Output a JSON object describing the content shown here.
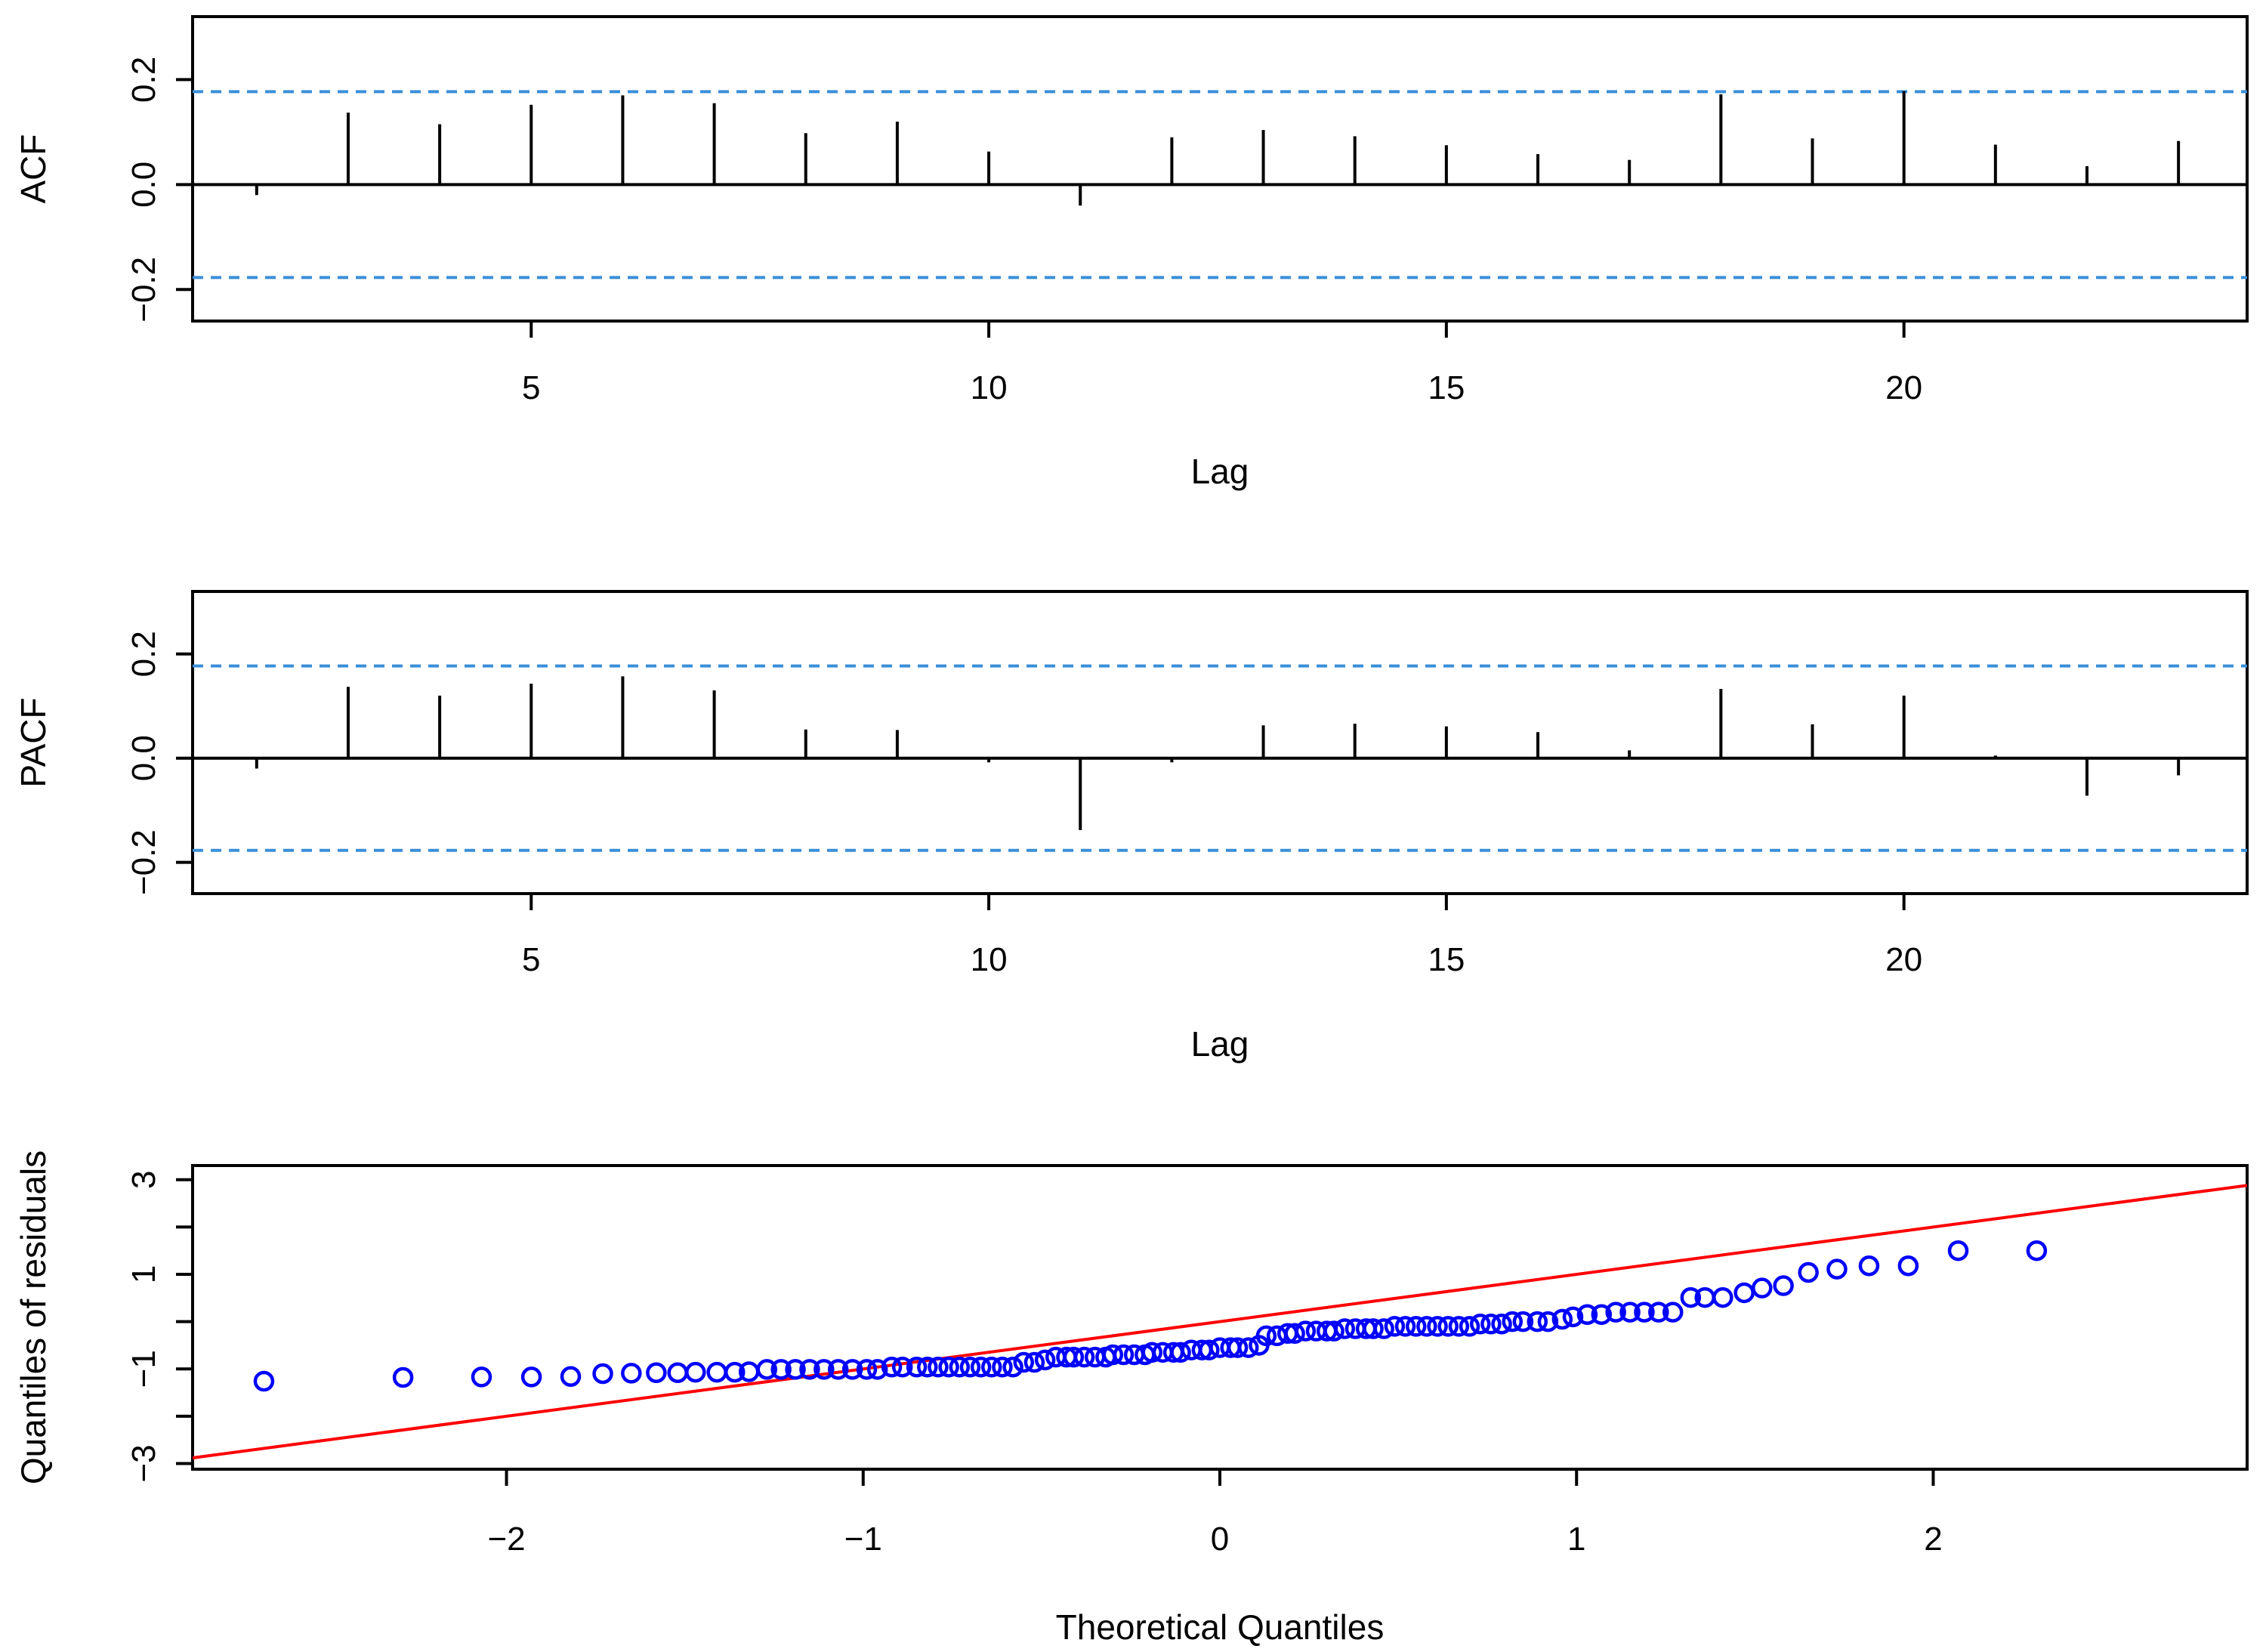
{
  "chart_data": [
    {
      "type": "bar",
      "ylabel": "ACF",
      "xlabel": "Lag",
      "xlim": [
        1.3,
        23.75
      ],
      "ylim": [
        -0.26,
        0.32
      ],
      "xticks": [
        5,
        10,
        15,
        20
      ],
      "yticks": [
        -0.2,
        0.0,
        0.2
      ],
      "ytick_labels": [
        "-0.2",
        "0.0",
        "0.2"
      ],
      "confidence_band": 0.177,
      "colors": {
        "bars": "#000000",
        "band": "#3a8fd9"
      },
      "lags": [
        2,
        3,
        4,
        5,
        6,
        7,
        8,
        9,
        10,
        11,
        12,
        13,
        14,
        15,
        16,
        17,
        18,
        19,
        20,
        21,
        22,
        23
      ],
      "values": [
        -0.02,
        0.137,
        0.115,
        0.152,
        0.17,
        0.155,
        0.098,
        0.12,
        0.063,
        -0.04,
        0.09,
        0.104,
        0.092,
        0.075,
        0.058,
        0.047,
        0.172,
        0.088,
        0.178,
        0.076,
        0.035,
        0.083
      ]
    },
    {
      "type": "bar",
      "ylabel": "PACF",
      "xlabel": "Lag",
      "xlim": [
        1.3,
        23.75
      ],
      "ylim": [
        -0.26,
        0.32
      ],
      "xticks": [
        5,
        10,
        15,
        20
      ],
      "yticks": [
        -0.2,
        0.0,
        0.2
      ],
      "ytick_labels": [
        "-0.2",
        "0.0",
        "0.2"
      ],
      "confidence_band": 0.177,
      "colors": {
        "bars": "#000000",
        "band": "#3a8fd9"
      },
      "lags": [
        2,
        3,
        4,
        5,
        6,
        7,
        8,
        9,
        10,
        11,
        12,
        13,
        14,
        15,
        16,
        17,
        18,
        19,
        20,
        21,
        22,
        23
      ],
      "values": [
        -0.02,
        0.137,
        0.12,
        0.143,
        0.157,
        0.13,
        0.055,
        0.054,
        -0.008,
        -0.138,
        -0.008,
        0.063,
        0.066,
        0.061,
        0.05,
        0.015,
        0.133,
        0.065,
        0.12,
        0.005,
        -0.072,
        -0.033
      ]
    },
    {
      "type": "scatter",
      "ylabel": "Quantiles of residuals",
      "xlabel": "Theoretical Quantiles",
      "xlim": [
        -2.88,
        2.88
      ],
      "ylim": [
        -3.12,
        3.3
      ],
      "xticks": [
        -2,
        -1,
        0,
        1,
        2
      ],
      "yticks": [
        -3,
        -2,
        -1,
        0,
        1,
        2,
        3
      ],
      "labeled_yticks": [
        -3,
        -1,
        1,
        3
      ],
      "reference_line": {
        "intercept": 0.0,
        "slope": 1.0,
        "color": "#ff0000"
      },
      "colors": {
        "points": "#0000ff"
      },
      "points": [
        {
          "x": -2.68,
          "y": -1.26
        },
        {
          "x": -2.29,
          "y": -1.18
        },
        {
          "x": -2.07,
          "y": -1.17
        },
        {
          "x": -1.93,
          "y": -1.17
        },
        {
          "x": -1.82,
          "y": -1.16
        },
        {
          "x": -1.73,
          "y": -1.1
        },
        {
          "x": -1.65,
          "y": -1.09
        },
        {
          "x": -1.58,
          "y": -1.08
        },
        {
          "x": -1.52,
          "y": -1.08
        },
        {
          "x": -1.47,
          "y": -1.07
        },
        {
          "x": -1.41,
          "y": -1.07
        },
        {
          "x": -1.36,
          "y": -1.07
        },
        {
          "x": -1.32,
          "y": -1.06
        },
        {
          "x": -1.27,
          "y": -1.01
        },
        {
          "x": -1.23,
          "y": -1.01
        },
        {
          "x": -1.19,
          "y": -1.01
        },
        {
          "x": -1.15,
          "y": -1.01
        },
        {
          "x": -1.11,
          "y": -1.01
        },
        {
          "x": -1.07,
          "y": -1.01
        },
        {
          "x": -1.03,
          "y": -1.01
        },
        {
          "x": -0.99,
          "y": -1.01
        },
        {
          "x": -0.96,
          "y": -1.01
        },
        {
          "x": -0.92,
          "y": -0.96
        },
        {
          "x": -0.89,
          "y": -0.96
        },
        {
          "x": -0.85,
          "y": -0.96
        },
        {
          "x": -0.82,
          "y": -0.96
        },
        {
          "x": -0.79,
          "y": -0.96
        },
        {
          "x": -0.76,
          "y": -0.96
        },
        {
          "x": -0.73,
          "y": -0.96
        },
        {
          "x": -0.7,
          "y": -0.96
        },
        {
          "x": -0.67,
          "y": -0.96
        },
        {
          "x": -0.64,
          "y": -0.96
        },
        {
          "x": -0.61,
          "y": -0.96
        },
        {
          "x": -0.58,
          "y": -0.96
        },
        {
          "x": -0.55,
          "y": -0.86
        },
        {
          "x": -0.52,
          "y": -0.86
        },
        {
          "x": -0.49,
          "y": -0.81
        },
        {
          "x": -0.46,
          "y": -0.75
        },
        {
          "x": -0.43,
          "y": -0.75
        },
        {
          "x": -0.41,
          "y": -0.75
        },
        {
          "x": -0.38,
          "y": -0.75
        },
        {
          "x": -0.35,
          "y": -0.75
        },
        {
          "x": -0.32,
          "y": -0.75
        },
        {
          "x": -0.3,
          "y": -0.7
        },
        {
          "x": -0.27,
          "y": -0.7
        },
        {
          "x": -0.24,
          "y": -0.7
        },
        {
          "x": -0.21,
          "y": -0.7
        },
        {
          "x": -0.19,
          "y": -0.65
        },
        {
          "x": -0.16,
          "y": -0.65
        },
        {
          "x": -0.13,
          "y": -0.65
        },
        {
          "x": -0.11,
          "y": -0.65
        },
        {
          "x": -0.08,
          "y": -0.6
        },
        {
          "x": -0.05,
          "y": -0.6
        },
        {
          "x": -0.03,
          "y": -0.6
        },
        {
          "x": 0.0,
          "y": -0.55
        },
        {
          "x": 0.03,
          "y": -0.55
        },
        {
          "x": 0.05,
          "y": -0.55
        },
        {
          "x": 0.08,
          "y": -0.55
        },
        {
          "x": 0.11,
          "y": -0.5
        },
        {
          "x": 0.13,
          "y": -0.3
        },
        {
          "x": 0.16,
          "y": -0.3
        },
        {
          "x": 0.19,
          "y": -0.25
        },
        {
          "x": 0.21,
          "y": -0.25
        },
        {
          "x": 0.24,
          "y": -0.2
        },
        {
          "x": 0.27,
          "y": -0.2
        },
        {
          "x": 0.3,
          "y": -0.2
        },
        {
          "x": 0.32,
          "y": -0.2
        },
        {
          "x": 0.35,
          "y": -0.15
        },
        {
          "x": 0.38,
          "y": -0.15
        },
        {
          "x": 0.41,
          "y": -0.15
        },
        {
          "x": 0.43,
          "y": -0.15
        },
        {
          "x": 0.46,
          "y": -0.15
        },
        {
          "x": 0.49,
          "y": -0.1
        },
        {
          "x": 0.52,
          "y": -0.1
        },
        {
          "x": 0.55,
          "y": -0.1
        },
        {
          "x": 0.58,
          "y": -0.1
        },
        {
          "x": 0.61,
          "y": -0.1
        },
        {
          "x": 0.64,
          "y": -0.1
        },
        {
          "x": 0.67,
          "y": -0.1
        },
        {
          "x": 0.7,
          "y": -0.1
        },
        {
          "x": 0.73,
          "y": -0.05
        },
        {
          "x": 0.76,
          "y": -0.05
        },
        {
          "x": 0.79,
          "y": -0.05
        },
        {
          "x": 0.82,
          "y": 0.0
        },
        {
          "x": 0.85,
          "y": 0.0
        },
        {
          "x": 0.89,
          "y": 0.0
        },
        {
          "x": 0.92,
          "y": 0.0
        },
        {
          "x": 0.96,
          "y": 0.05
        },
        {
          "x": 0.99,
          "y": 0.1
        },
        {
          "x": 1.03,
          "y": 0.15
        },
        {
          "x": 1.07,
          "y": 0.15
        },
        {
          "x": 1.11,
          "y": 0.2
        },
        {
          "x": 1.15,
          "y": 0.2
        },
        {
          "x": 1.19,
          "y": 0.2
        },
        {
          "x": 1.23,
          "y": 0.2
        },
        {
          "x": 1.27,
          "y": 0.2
        },
        {
          "x": 1.32,
          "y": 0.51
        },
        {
          "x": 1.36,
          "y": 0.51
        },
        {
          "x": 1.41,
          "y": 0.51
        },
        {
          "x": 1.47,
          "y": 0.61
        },
        {
          "x": 1.52,
          "y": 0.71
        },
        {
          "x": 1.58,
          "y": 0.76
        },
        {
          "x": 1.65,
          "y": 1.04
        },
        {
          "x": 1.73,
          "y": 1.11
        },
        {
          "x": 1.82,
          "y": 1.18
        },
        {
          "x": 1.93,
          "y": 1.18
        },
        {
          "x": 2.07,
          "y": 1.5
        },
        {
          "x": 2.29,
          "y": 1.5
        }
      ]
    }
  ]
}
